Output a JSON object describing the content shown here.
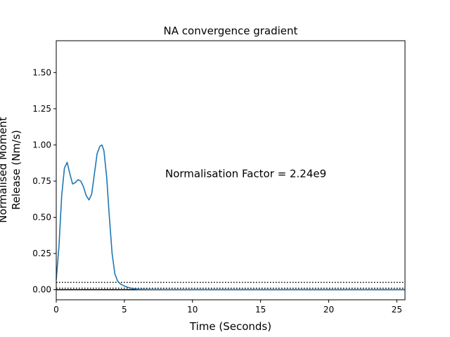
{
  "chart_data": {
    "type": "line",
    "title": "NA convergence gradient",
    "xlabel": "Time (Seconds)",
    "ylabel_lines": [
      "Normalised Moment",
      "Release (Nm/s)"
    ],
    "xlim": [
      0,
      25.6
    ],
    "ylim": [
      -0.07,
      1.72
    ],
    "xticks": [
      0,
      5,
      10,
      15,
      20,
      25
    ],
    "yticks": [
      0.0,
      0.25,
      0.5,
      0.75,
      1.0,
      1.25,
      1.5
    ],
    "ytick_labels": [
      "0.00",
      "0.25",
      "0.50",
      "0.75",
      "1.00",
      "1.25",
      "1.50"
    ],
    "grid": false,
    "annotation": {
      "text": "Normalisation Factor = 2.24e9",
      "x": 8.0,
      "y": 0.8
    },
    "series": [
      {
        "color": "#1f77b4",
        "x": [
          0,
          0.2,
          0.4,
          0.6,
          0.8,
          1.0,
          1.2,
          1.4,
          1.6,
          1.8,
          2.0,
          2.2,
          2.4,
          2.6,
          2.8,
          3.0,
          3.2,
          3.35,
          3.5,
          3.7,
          3.9,
          4.1,
          4.3,
          4.5,
          4.7,
          5.0,
          5.3,
          5.6,
          6.0,
          7.0,
          10,
          15,
          20,
          25.6
        ],
        "y": [
          0.07,
          0.3,
          0.65,
          0.84,
          0.88,
          0.8,
          0.73,
          0.74,
          0.76,
          0.75,
          0.71,
          0.65,
          0.62,
          0.66,
          0.8,
          0.94,
          0.99,
          1.0,
          0.96,
          0.78,
          0.5,
          0.25,
          0.11,
          0.06,
          0.04,
          0.025,
          0.015,
          0.008,
          0.003,
          0.001,
          0.0,
          0.0,
          0.0,
          0.0
        ]
      }
    ],
    "hlines": [
      {
        "y": 0.05,
        "style": "dotted",
        "color": "#000000"
      },
      {
        "y": 0.01,
        "style": "dotted",
        "color": "#000000"
      },
      {
        "y": 0.0,
        "style": "solid",
        "color": "#000000"
      }
    ]
  }
}
